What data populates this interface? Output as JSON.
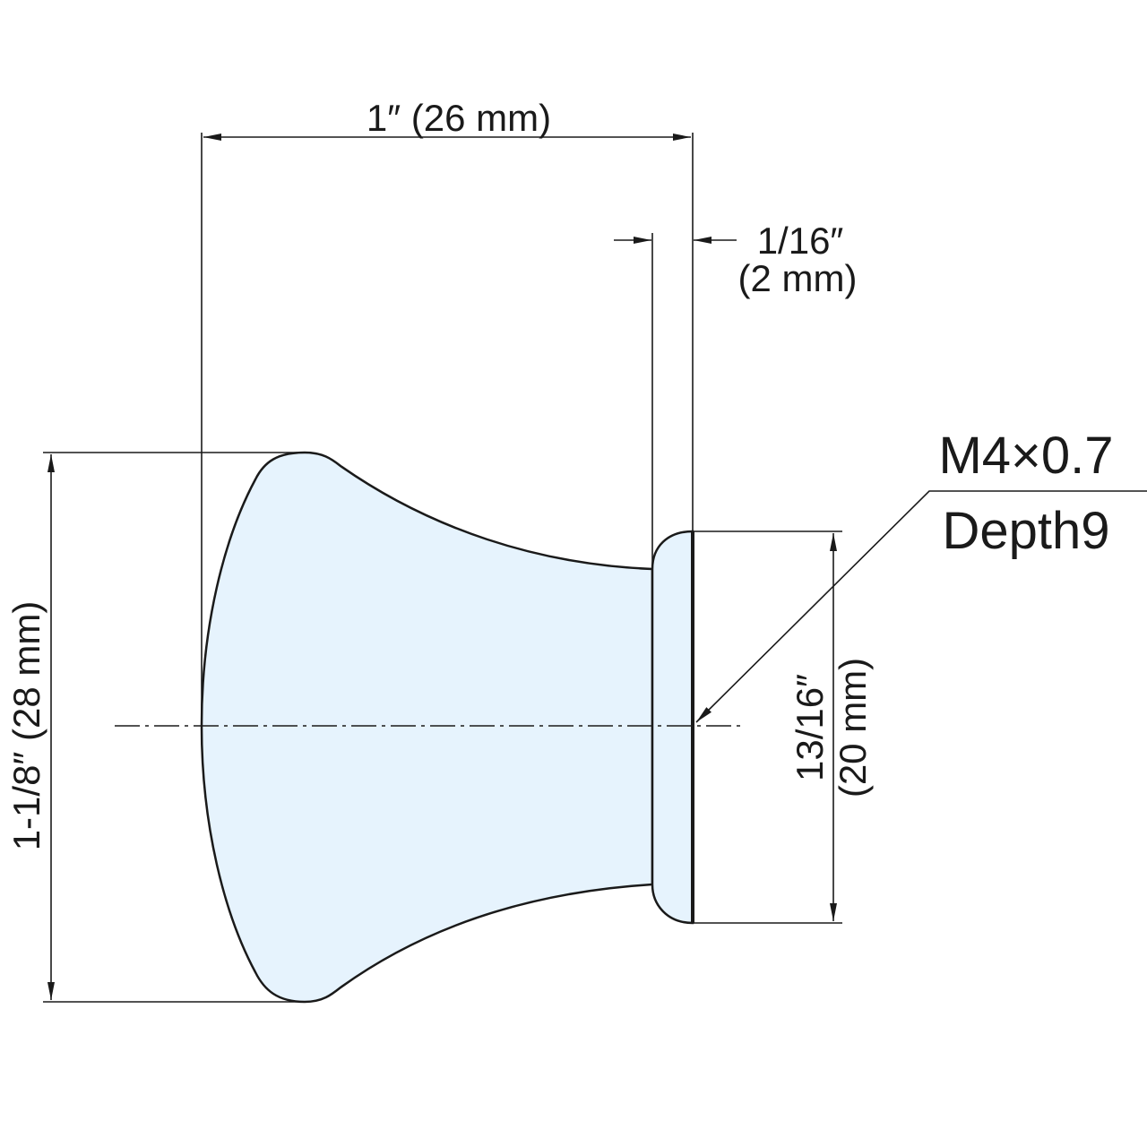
{
  "dimensions": {
    "overall_length": "1″ (26 mm)",
    "flange_thickness": {
      "inch": "1/16″",
      "metric": "(2 mm)"
    },
    "knob_diameter": "1-1/8″ (28 mm)",
    "base_diameter": {
      "inch": "13/16″",
      "metric": "(20 mm)"
    }
  },
  "thread": {
    "size": "M4×0.7",
    "depth": "Depth9"
  }
}
